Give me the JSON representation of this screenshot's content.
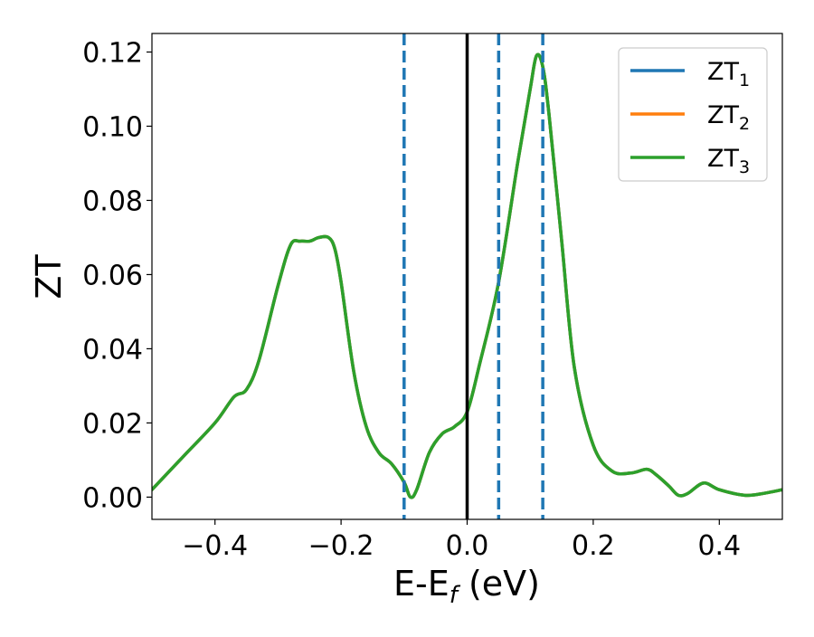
{
  "chart_data": {
    "type": "line",
    "title": "",
    "xlabel": "E-E",
    "xlabel_sub": "f",
    "xlabel_suffix": " (eV)",
    "ylabel": "ZT",
    "xlim": [
      -0.5,
      0.5
    ],
    "ylim": [
      -0.006,
      0.125
    ],
    "x_ticks": [
      -0.4,
      -0.2,
      0.0,
      0.2,
      0.4
    ],
    "x_tick_labels": [
      "−0.4",
      "−0.2",
      "0.0",
      "0.2",
      "0.4"
    ],
    "y_ticks": [
      0.0,
      0.02,
      0.04,
      0.06,
      0.08,
      0.1,
      0.12
    ],
    "y_tick_labels": [
      "0.00",
      "0.02",
      "0.04",
      "0.06",
      "0.08",
      "0.10",
      "0.12"
    ],
    "grid": false,
    "legend_position": "top-right",
    "vertical_lines": [
      {
        "x": 0.0,
        "style": "solid",
        "color": "#000000"
      },
      {
        "x": -0.1,
        "style": "dashed",
        "color": "#1f77b4"
      },
      {
        "x": 0.05,
        "style": "dashed",
        "color": "#1f77b4"
      },
      {
        "x": 0.12,
        "style": "dashed",
        "color": "#1f77b4"
      }
    ],
    "x": [
      -0.5,
      -0.45,
      -0.4,
      -0.37,
      -0.35,
      -0.33,
      -0.3,
      -0.28,
      -0.265,
      -0.25,
      -0.235,
      -0.22,
      -0.21,
      -0.2,
      -0.18,
      -0.16,
      -0.14,
      -0.12,
      -0.1,
      -0.09,
      -0.08,
      -0.06,
      -0.04,
      -0.02,
      0.0,
      0.02,
      0.05,
      0.08,
      0.1,
      0.11,
      0.12,
      0.13,
      0.15,
      0.17,
      0.2,
      0.23,
      0.26,
      0.285,
      0.3,
      0.32,
      0.335,
      0.35,
      0.375,
      0.4,
      0.44,
      0.47,
      0.5
    ],
    "series": [
      {
        "name": "ZT",
        "name_sub": "1",
        "color": "#1f77b4",
        "values": [
          0.002,
          0.011,
          0.02,
          0.027,
          0.029,
          0.037,
          0.057,
          0.068,
          0.069,
          0.069,
          0.07,
          0.07,
          0.067,
          0.058,
          0.034,
          0.019,
          0.012,
          0.009,
          0.004,
          0.0,
          0.002,
          0.012,
          0.017,
          0.019,
          0.023,
          0.036,
          0.058,
          0.09,
          0.11,
          0.119,
          0.116,
          0.103,
          0.069,
          0.035,
          0.014,
          0.007,
          0.0065,
          0.0075,
          0.006,
          0.003,
          0.0005,
          0.001,
          0.0038,
          0.002,
          0.0005,
          0.001,
          0.002
        ]
      },
      {
        "name": "ZT",
        "name_sub": "2",
        "color": "#ff7f0e",
        "values": [
          0.002,
          0.011,
          0.02,
          0.027,
          0.029,
          0.037,
          0.057,
          0.068,
          0.069,
          0.069,
          0.07,
          0.07,
          0.067,
          0.058,
          0.034,
          0.019,
          0.012,
          0.009,
          0.004,
          0.0,
          0.002,
          0.012,
          0.017,
          0.019,
          0.023,
          0.036,
          0.058,
          0.09,
          0.11,
          0.119,
          0.116,
          0.103,
          0.069,
          0.035,
          0.014,
          0.007,
          0.0065,
          0.0075,
          0.006,
          0.003,
          0.0005,
          0.001,
          0.0038,
          0.002,
          0.0005,
          0.001,
          0.002
        ]
      },
      {
        "name": "ZT",
        "name_sub": "3",
        "color": "#2ca02c",
        "values": [
          0.002,
          0.011,
          0.02,
          0.027,
          0.029,
          0.037,
          0.057,
          0.068,
          0.069,
          0.069,
          0.07,
          0.07,
          0.067,
          0.058,
          0.034,
          0.019,
          0.012,
          0.009,
          0.004,
          0.0,
          0.002,
          0.012,
          0.017,
          0.019,
          0.023,
          0.036,
          0.058,
          0.09,
          0.11,
          0.119,
          0.116,
          0.103,
          0.069,
          0.035,
          0.014,
          0.007,
          0.0065,
          0.0075,
          0.006,
          0.003,
          0.0005,
          0.001,
          0.0038,
          0.002,
          0.0005,
          0.001,
          0.002
        ]
      }
    ]
  }
}
